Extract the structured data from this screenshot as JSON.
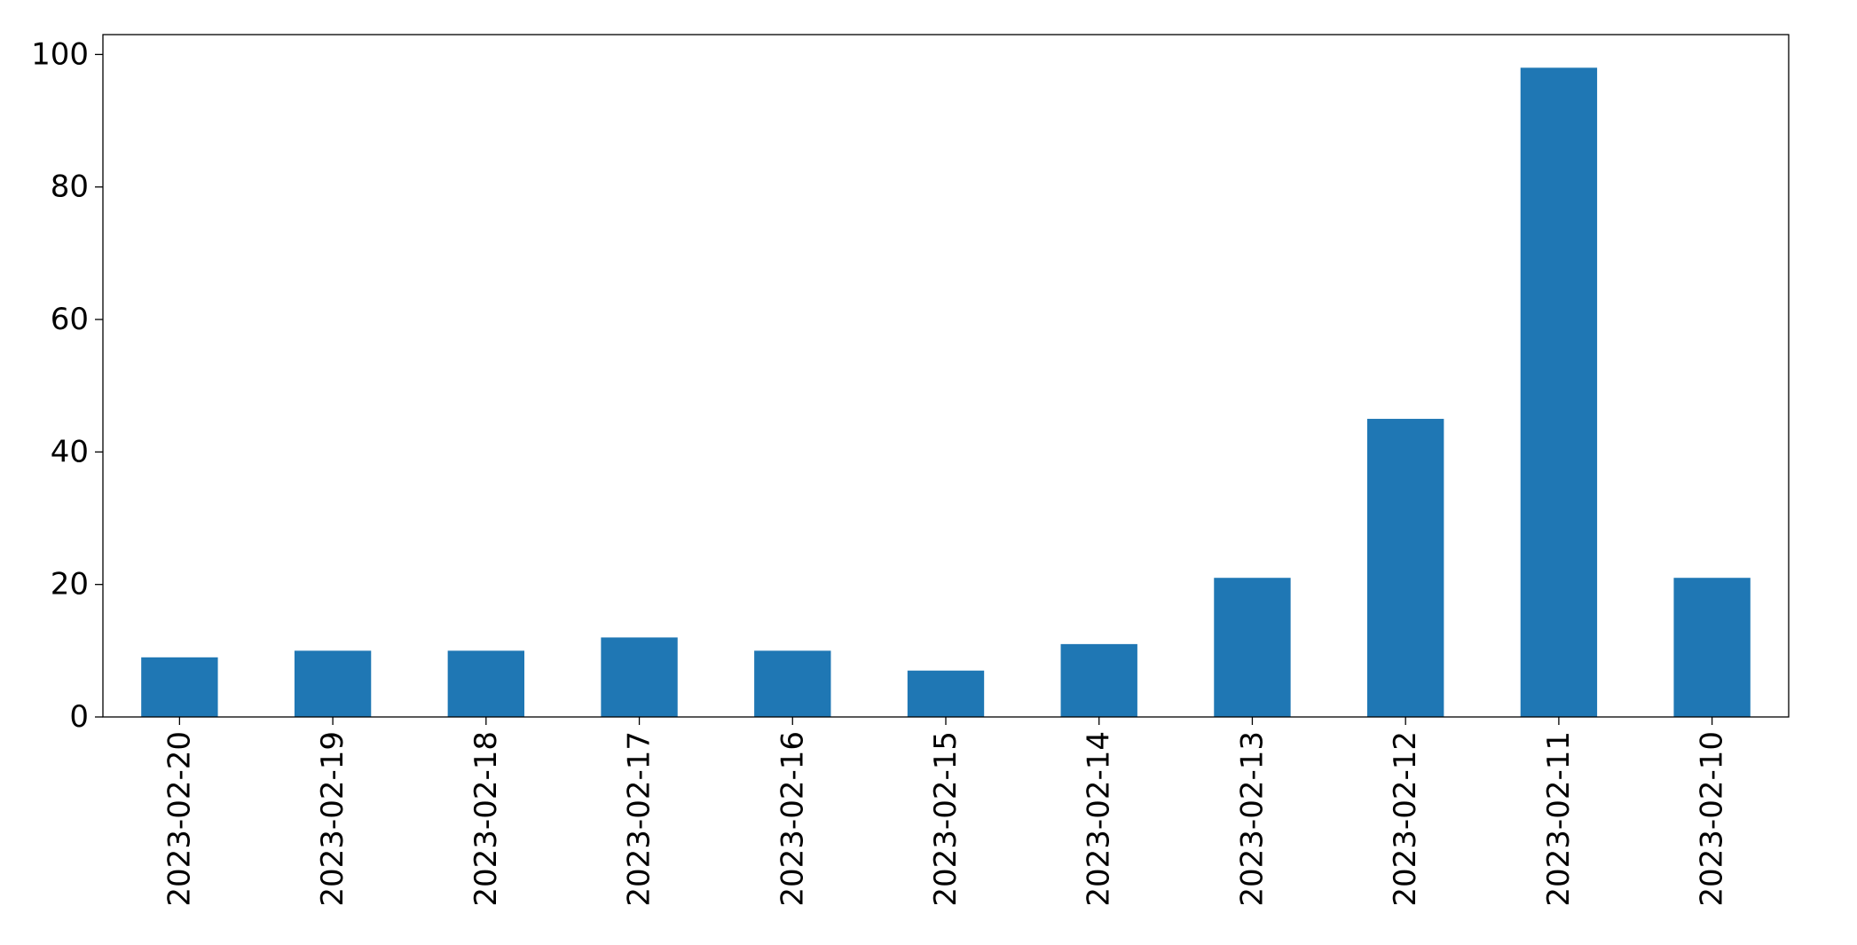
{
  "chart_data": {
    "type": "bar",
    "title": "",
    "xlabel": "",
    "ylabel": "",
    "categories": [
      "2023-02-20",
      "2023-02-19",
      "2023-02-18",
      "2023-02-17",
      "2023-02-16",
      "2023-02-15",
      "2023-02-14",
      "2023-02-13",
      "2023-02-12",
      "2023-02-11",
      "2023-02-10"
    ],
    "values": [
      9,
      10,
      10,
      12,
      10,
      7,
      11,
      21,
      45,
      98,
      21
    ],
    "ylim": [
      0,
      103
    ],
    "yticks": [
      0,
      20,
      40,
      60,
      80,
      100
    ],
    "grid": false,
    "legend": "none",
    "bar_color": "#1f77b4"
  }
}
